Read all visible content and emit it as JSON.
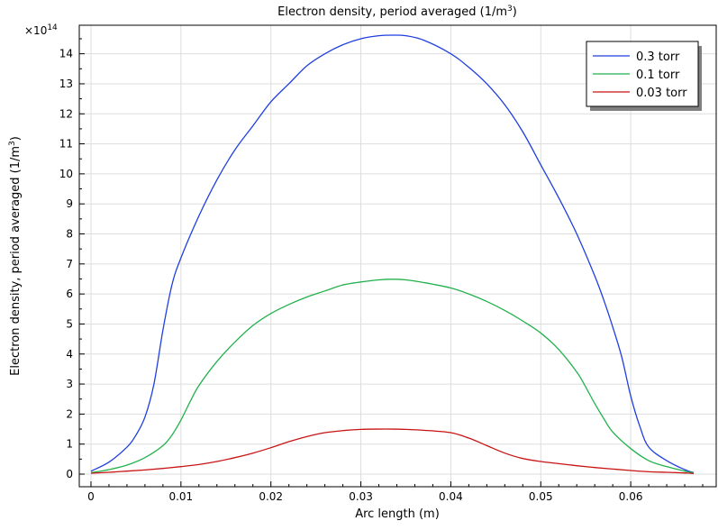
{
  "chart_data": {
    "type": "line",
    "title": "Electron density, period averaged (1/m",
    "title_sup": "3",
    "title_end": ")",
    "xlabel": "Arc length (m)",
    "ylabel": "Electron density, period averaged (1/m",
    "ylabel_sup": "3",
    "ylabel_end": ")",
    "y_multiplier_base": "×10",
    "y_multiplier_exp": "14",
    "xlim": [
      -0.0013,
      0.0695
    ],
    "ylim": [
      -0.42,
      14.95
    ],
    "x_ticks": [
      0,
      0.01,
      0.02,
      0.03,
      0.04,
      0.05,
      0.06
    ],
    "x_tick_labels": [
      "0",
      "0.01",
      "0.02",
      "0.03",
      "0.04",
      "0.05",
      "0.06"
    ],
    "y_ticks": [
      0,
      1,
      2,
      3,
      4,
      5,
      6,
      7,
      8,
      9,
      10,
      11,
      12,
      13,
      14
    ],
    "y_tick_labels": [
      "0",
      "1",
      "2",
      "3",
      "4",
      "5",
      "6",
      "7",
      "8",
      "9",
      "10",
      "11",
      "12",
      "13",
      "14"
    ],
    "grid": true,
    "legend_position": "top-right",
    "series": [
      {
        "name": "0.3 torr",
        "color": "#1f3fe0",
        "x": [
          0,
          0.002,
          0.004,
          0.005,
          0.006,
          0.007,
          0.008,
          0.009,
          0.01,
          0.012,
          0.014,
          0.016,
          0.018,
          0.02,
          0.022,
          0.024,
          0.026,
          0.028,
          0.03,
          0.032,
          0.0335,
          0.035,
          0.037,
          0.04,
          0.042,
          0.044,
          0.046,
          0.048,
          0.05,
          0.052,
          0.054,
          0.056,
          0.057,
          0.058,
          0.059,
          0.06,
          0.061,
          0.062,
          0.064,
          0.066,
          0.067
        ],
        "y": [
          0.1,
          0.4,
          0.9,
          1.3,
          1.9,
          3.0,
          4.8,
          6.3,
          7.2,
          8.6,
          9.8,
          10.8,
          11.6,
          12.4,
          13.0,
          13.6,
          14.0,
          14.3,
          14.5,
          14.6,
          14.62,
          14.6,
          14.45,
          14.0,
          13.55,
          13.0,
          12.3,
          11.4,
          10.3,
          9.2,
          8.0,
          6.6,
          5.8,
          4.9,
          3.9,
          2.6,
          1.6,
          0.9,
          0.45,
          0.15,
          0.05
        ]
      },
      {
        "name": "0.1 torr",
        "color": "#22b14c",
        "x": [
          0,
          0.002,
          0.004,
          0.006,
          0.008,
          0.009,
          0.01,
          0.011,
          0.012,
          0.014,
          0.016,
          0.018,
          0.02,
          0.022,
          0.024,
          0.026,
          0.028,
          0.03,
          0.032,
          0.0335,
          0.035,
          0.037,
          0.04,
          0.042,
          0.044,
          0.046,
          0.048,
          0.05,
          0.052,
          0.054,
          0.055,
          0.056,
          0.057,
          0.058,
          0.06,
          0.062,
          0.064,
          0.066,
          0.067
        ],
        "y": [
          0.05,
          0.15,
          0.3,
          0.55,
          0.95,
          1.3,
          1.8,
          2.4,
          2.95,
          3.75,
          4.4,
          4.95,
          5.35,
          5.65,
          5.9,
          6.1,
          6.3,
          6.4,
          6.47,
          6.49,
          6.47,
          6.38,
          6.2,
          6.0,
          5.75,
          5.45,
          5.1,
          4.7,
          4.15,
          3.4,
          2.9,
          2.35,
          1.85,
          1.4,
          0.85,
          0.45,
          0.25,
          0.1,
          0.04
        ]
      },
      {
        "name": "0.03 torr",
        "color": "#c81414",
        "x": [
          0,
          0.002,
          0.004,
          0.006,
          0.008,
          0.01,
          0.012,
          0.014,
          0.016,
          0.018,
          0.02,
          0.022,
          0.024,
          0.026,
          0.028,
          0.03,
          0.032,
          0.0335,
          0.035,
          0.037,
          0.04,
          0.042,
          0.044,
          0.046,
          0.048,
          0.05,
          0.052,
          0.054,
          0.056,
          0.058,
          0.06,
          0.062,
          0.064,
          0.066,
          0.067
        ],
        "y": [
          0.03,
          0.06,
          0.1,
          0.14,
          0.19,
          0.25,
          0.32,
          0.42,
          0.55,
          0.7,
          0.88,
          1.08,
          1.25,
          1.38,
          1.45,
          1.49,
          1.5,
          1.5,
          1.49,
          1.46,
          1.38,
          1.2,
          0.95,
          0.7,
          0.52,
          0.42,
          0.35,
          0.28,
          0.22,
          0.17,
          0.12,
          0.08,
          0.06,
          0.04,
          0.02
        ]
      }
    ]
  }
}
